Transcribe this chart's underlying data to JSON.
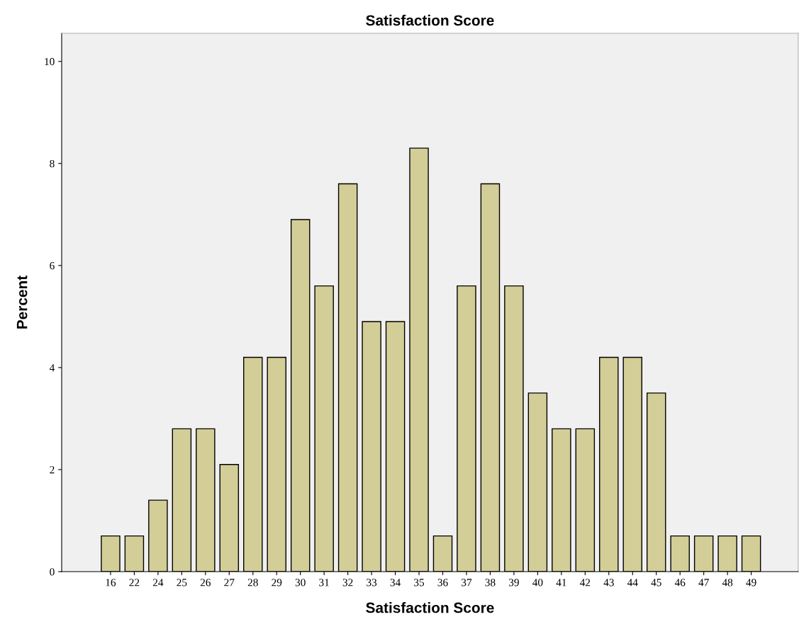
{
  "chart_data": {
    "type": "bar",
    "title": "Satisfaction Score",
    "xlabel": "Satisfaction Score",
    "ylabel": "Percent",
    "categories": [
      "16",
      "22",
      "24",
      "25",
      "26",
      "27",
      "28",
      "29",
      "30",
      "31",
      "32",
      "33",
      "34",
      "35",
      "36",
      "37",
      "38",
      "39",
      "40",
      "41",
      "42",
      "43",
      "44",
      "45",
      "46",
      "47",
      "48",
      "49"
    ],
    "values": [
      0.7,
      0.7,
      1.4,
      2.8,
      2.8,
      2.1,
      4.2,
      4.2,
      6.9,
      5.6,
      7.6,
      4.9,
      4.9,
      8.3,
      0.7,
      5.6,
      7.6,
      5.6,
      3.5,
      2.8,
      2.8,
      4.2,
      4.2,
      3.5,
      0.7,
      0.7,
      0.7,
      0.7
    ],
    "color": "#d3ce97",
    "ylim": [
      0,
      10.55
    ],
    "yticks": [
      0,
      2,
      4,
      6,
      8,
      10
    ],
    "grid": false,
    "legend": false
  }
}
